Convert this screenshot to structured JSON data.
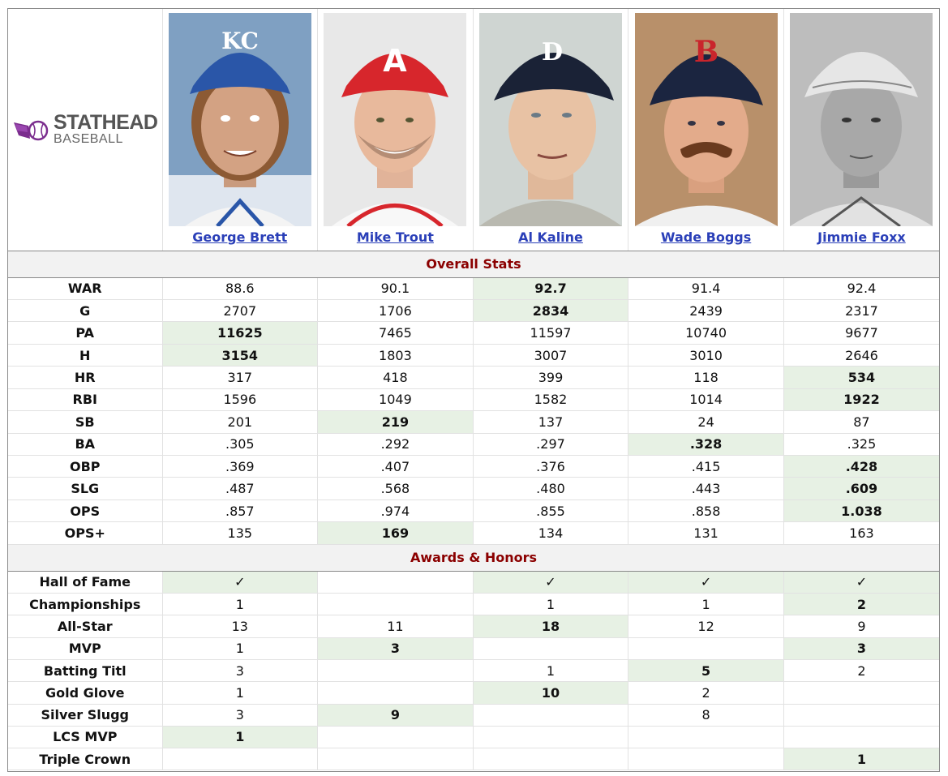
{
  "logo": {
    "brand": "STATHEAD",
    "sub": "BASEBALL",
    "color": "#7b2d8e"
  },
  "players": [
    {
      "name": "George Brett",
      "cap_color": "#2a56a8",
      "cap_logo": "KC"
    },
    {
      "name": "Mike Trout",
      "cap_color": "#d7262c",
      "cap_logo": "A"
    },
    {
      "name": "Al Kaline",
      "cap_color": "#1a2236",
      "cap_logo": "D"
    },
    {
      "name": "Wade Boggs",
      "cap_color": "#1b2540",
      "cap_logo": "B"
    },
    {
      "name": "Jimmie Foxx",
      "cap_color": "#e6e6e6",
      "cap_logo": ""
    }
  ],
  "sections": [
    {
      "title": "Overall Stats",
      "rows": [
        {
          "label": "WAR",
          "values": [
            "88.6",
            "90.1",
            "92.7",
            "91.4",
            "92.4"
          ],
          "best": [
            2
          ]
        },
        {
          "label": "G",
          "values": [
            "2707",
            "1706",
            "2834",
            "2439",
            "2317"
          ],
          "best": [
            2
          ]
        },
        {
          "label": "PA",
          "values": [
            "11625",
            "7465",
            "11597",
            "10740",
            "9677"
          ],
          "best": [
            0
          ]
        },
        {
          "label": "H",
          "values": [
            "3154",
            "1803",
            "3007",
            "3010",
            "2646"
          ],
          "best": [
            0
          ]
        },
        {
          "label": "HR",
          "values": [
            "317",
            "418",
            "399",
            "118",
            "534"
          ],
          "best": [
            4
          ]
        },
        {
          "label": "RBI",
          "values": [
            "1596",
            "1049",
            "1582",
            "1014",
            "1922"
          ],
          "best": [
            4
          ]
        },
        {
          "label": "SB",
          "values": [
            "201",
            "219",
            "137",
            "24",
            "87"
          ],
          "best": [
            1
          ]
        },
        {
          "label": "BA",
          "values": [
            ".305",
            ".292",
            ".297",
            ".328",
            ".325"
          ],
          "best": [
            3
          ]
        },
        {
          "label": "OBP",
          "values": [
            ".369",
            ".407",
            ".376",
            ".415",
            ".428"
          ],
          "best": [
            4
          ]
        },
        {
          "label": "SLG",
          "values": [
            ".487",
            ".568",
            ".480",
            ".443",
            ".609"
          ],
          "best": [
            4
          ]
        },
        {
          "label": "OPS",
          "values": [
            ".857",
            ".974",
            ".855",
            ".858",
            "1.038"
          ],
          "best": [
            4
          ]
        },
        {
          "label": "OPS+",
          "values": [
            "135",
            "169",
            "134",
            "131",
            "163"
          ],
          "best": [
            1
          ]
        }
      ]
    },
    {
      "title": "Awards & Honors",
      "rows": [
        {
          "label": "Hall of Fame",
          "values": [
            "✓",
            "",
            "✓",
            "✓",
            "✓"
          ],
          "best": [
            0,
            2,
            3,
            4
          ]
        },
        {
          "label": "Championships",
          "values": [
            "1",
            "",
            "1",
            "1",
            "2"
          ],
          "best": [
            4
          ]
        },
        {
          "label": "All-Star",
          "values": [
            "13",
            "11",
            "18",
            "12",
            "9"
          ],
          "best": [
            2
          ]
        },
        {
          "label": "MVP",
          "values": [
            "1",
            "3",
            "",
            "",
            "3"
          ],
          "best": [
            1,
            4
          ]
        },
        {
          "label": "Batting Titl",
          "values": [
            "3",
            "",
            "1",
            "5",
            "2"
          ],
          "best": [
            3
          ]
        },
        {
          "label": "Gold Glove",
          "values": [
            "1",
            "",
            "10",
            "2",
            ""
          ],
          "best": [
            2
          ]
        },
        {
          "label": "Silver Slugg",
          "values": [
            "3",
            "9",
            "",
            "8",
            ""
          ],
          "best": [
            1
          ]
        },
        {
          "label": "LCS MVP",
          "values": [
            "1",
            "",
            "",
            "",
            ""
          ],
          "best": [
            0
          ]
        },
        {
          "label": "Triple Crown",
          "values": [
            "",
            "",
            "",
            "",
            "1"
          ],
          "best": [
            4
          ]
        }
      ]
    }
  ]
}
